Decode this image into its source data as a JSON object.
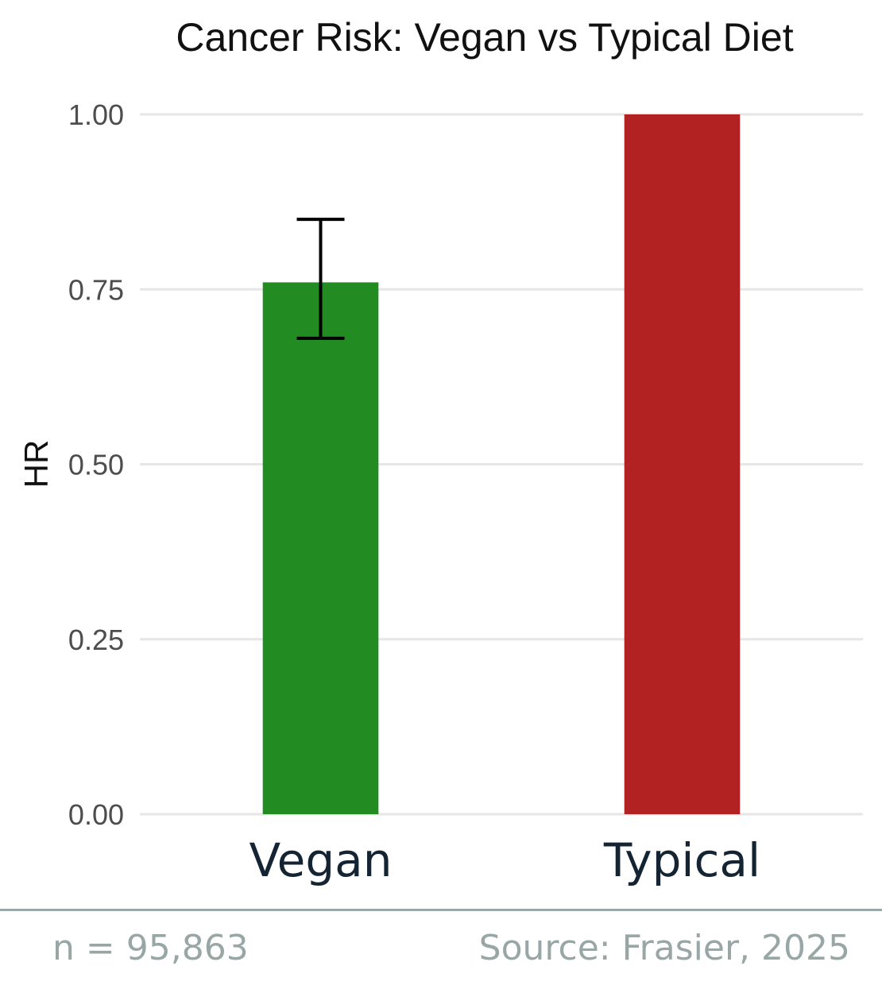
{
  "chart_data": {
    "type": "bar",
    "title": "Cancer Risk: Vegan vs Typical Diet",
    "xlabel": "",
    "ylabel": "HR",
    "categories": [
      "Vegan",
      "Typical"
    ],
    "values": [
      0.76,
      1.0
    ],
    "error_bars": [
      {
        "category": "Vegan",
        "lower": 0.68,
        "upper": 0.85
      },
      null
    ],
    "colors": [
      "#228B22",
      "#B22222"
    ],
    "ylim": [
      0,
      1
    ],
    "yticks": [
      "0.00",
      "0.25",
      "0.50",
      "0.75",
      "1.00"
    ],
    "grid": true,
    "legend": "none"
  },
  "footer": {
    "sample_size": "n = 95,863",
    "source": "Source: Frasier, 2025"
  }
}
